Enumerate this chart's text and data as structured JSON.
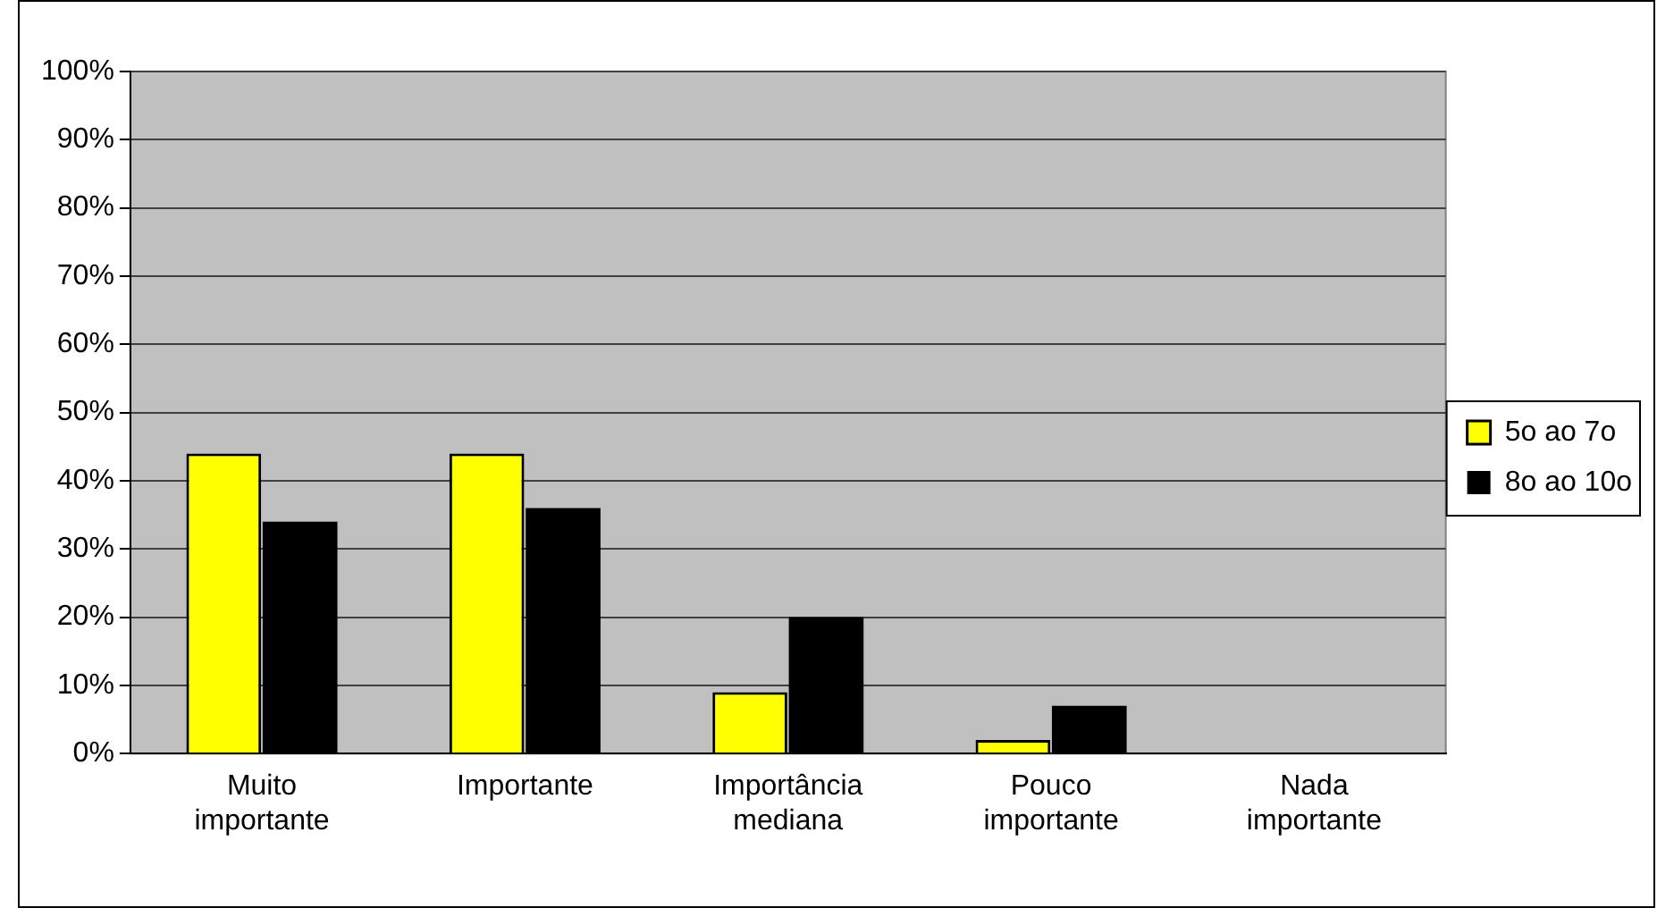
{
  "chart_data": {
    "type": "bar",
    "categories": [
      "Muito importante",
      "Importante",
      "Importância mediana",
      "Pouco importante",
      "Nada importante"
    ],
    "series": [
      {
        "name": "5o ao 7o",
        "color": "#ffff00",
        "values": [
          44,
          44,
          9,
          2,
          0
        ]
      },
      {
        "name": "8o ao 10o",
        "color": "#000000",
        "values": [
          34,
          36,
          20,
          7,
          0
        ]
      }
    ],
    "ylim": [
      0,
      100
    ],
    "yticks": [
      {
        "value": 0,
        "label": "0%"
      },
      {
        "value": 10,
        "label": "10%"
      },
      {
        "value": 20,
        "label": "20%"
      },
      {
        "value": 30,
        "label": "30%"
      },
      {
        "value": 40,
        "label": "40%"
      },
      {
        "value": 50,
        "label": "50%"
      },
      {
        "value": 60,
        "label": "60%"
      },
      {
        "value": 70,
        "label": "70%"
      },
      {
        "value": 80,
        "label": "80%"
      },
      {
        "value": 90,
        "label": "90%"
      },
      {
        "value": 100,
        "label": "100%"
      }
    ],
    "grid": "y",
    "legend": "right"
  }
}
